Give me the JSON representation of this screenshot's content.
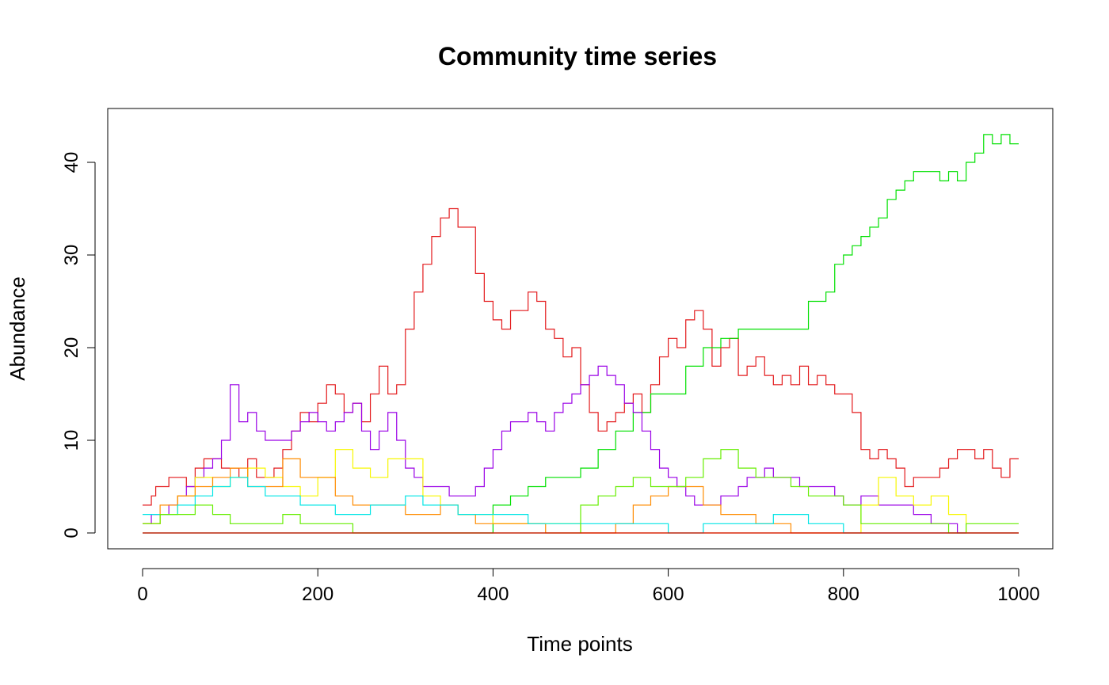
{
  "chart_data": {
    "type": "line",
    "title": "Community time series",
    "xlabel": "Time points",
    "ylabel": "Abundance",
    "xlim": [
      0,
      1000
    ],
    "ylim": [
      0,
      45
    ],
    "xticks": [
      0,
      200,
      400,
      600,
      800,
      1000
    ],
    "yticks": [
      0,
      10,
      20,
      30,
      40
    ],
    "grid": false,
    "series": [
      {
        "color": "#e31a1c",
        "x": [
          0,
          5,
          10,
          15,
          20,
          30,
          40,
          50,
          60,
          70,
          80,
          90,
          100,
          110,
          120,
          130,
          140,
          150,
          160,
          170,
          180,
          190,
          200,
          210,
          220,
          230,
          240,
          250,
          260,
          270,
          280,
          290,
          300,
          310,
          320,
          330,
          340,
          350,
          360,
          370,
          380,
          390,
          400,
          410,
          420,
          430,
          440,
          450,
          460,
          470,
          480,
          490,
          500,
          510,
          520,
          530,
          540,
          550,
          560,
          570,
          580,
          590,
          600,
          610,
          620,
          630,
          640,
          650,
          660,
          670,
          680,
          690,
          700,
          710,
          720,
          730,
          740,
          750,
          760,
          770,
          780,
          790,
          800,
          810,
          820,
          830,
          840,
          850,
          860,
          870,
          880,
          890,
          900,
          910,
          920,
          930,
          940,
          950,
          960,
          970,
          980,
          990,
          1000
        ],
        "y": [
          3,
          3,
          4,
          5,
          5,
          6,
          6,
          5,
          7,
          8,
          8,
          7,
          7,
          6,
          8,
          6,
          6,
          7,
          9,
          11,
          13,
          12,
          14,
          16,
          15,
          13,
          14,
          12,
          15,
          18,
          15,
          16,
          22,
          26,
          29,
          32,
          34,
          35,
          33,
          33,
          28,
          25,
          23,
          22,
          24,
          24,
          26,
          25,
          22,
          21,
          19,
          20,
          16,
          13,
          11,
          12,
          13,
          14,
          15,
          13,
          16,
          19,
          21,
          20,
          23,
          24,
          22,
          18,
          20,
          21,
          17,
          18,
          19,
          17,
          16,
          17,
          16,
          18,
          16,
          17,
          16,
          15,
          15,
          13,
          9,
          8,
          9,
          8,
          7,
          5,
          6,
          6,
          6,
          7,
          8,
          9,
          9,
          8,
          9,
          7,
          6,
          8,
          8
        ]
      },
      {
        "color": "#00e000",
        "x": [
          0,
          50,
          100,
          150,
          200,
          250,
          300,
          350,
          400,
          420,
          440,
          460,
          480,
          500,
          520,
          540,
          560,
          580,
          600,
          620,
          640,
          660,
          680,
          700,
          720,
          740,
          760,
          780,
          790,
          800,
          810,
          820,
          830,
          840,
          850,
          860,
          870,
          880,
          890,
          900,
          910,
          920,
          930,
          940,
          950,
          960,
          970,
          980,
          990,
          1000
        ],
        "y": [
          0,
          0,
          0,
          0,
          0,
          0,
          0,
          0,
          3,
          4,
          5,
          6,
          6,
          7,
          9,
          11,
          13,
          15,
          15,
          18,
          20,
          21,
          22,
          22,
          22,
          22,
          25,
          26,
          29,
          30,
          31,
          32,
          33,
          34,
          36,
          37,
          38,
          39,
          39,
          39,
          38,
          39,
          38,
          40,
          41,
          43,
          42,
          43,
          42,
          42
        ]
      },
      {
        "color": "#9a00e6",
        "x": [
          0,
          10,
          20,
          30,
          40,
          50,
          60,
          70,
          80,
          90,
          100,
          110,
          120,
          130,
          140,
          150,
          160,
          170,
          180,
          190,
          200,
          210,
          220,
          230,
          240,
          250,
          260,
          270,
          280,
          290,
          300,
          310,
          320,
          330,
          340,
          350,
          360,
          370,
          380,
          390,
          400,
          410,
          420,
          430,
          440,
          450,
          460,
          470,
          480,
          490,
          500,
          510,
          520,
          530,
          540,
          550,
          560,
          570,
          580,
          590,
          600,
          610,
          620,
          630,
          640,
          650,
          660,
          670,
          680,
          690,
          700,
          710,
          720,
          730,
          740,
          750,
          760,
          770,
          780,
          790,
          800,
          810,
          820,
          830,
          840,
          850,
          860,
          870,
          880,
          890,
          900,
          910,
          920,
          930,
          940
        ],
        "y": [
          1,
          2,
          2,
          3,
          4,
          5,
          6,
          7,
          8,
          10,
          16,
          12,
          13,
          11,
          10,
          10,
          10,
          11,
          12,
          13,
          12,
          11,
          12,
          13,
          14,
          11,
          9,
          11,
          13,
          10,
          7,
          6,
          5,
          5,
          5,
          4,
          4,
          4,
          5,
          7,
          9,
          11,
          12,
          12,
          13,
          12,
          11,
          13,
          14,
          15,
          16,
          17,
          18,
          17,
          16,
          14,
          13,
          11,
          9,
          7,
          6,
          5,
          4,
          3,
          3,
          3,
          4,
          4,
          5,
          6,
          6,
          7,
          6,
          6,
          6,
          5,
          5,
          5,
          5,
          4,
          3,
          3,
          4,
          4,
          3,
          3,
          3,
          3,
          2,
          2,
          1,
          1,
          1,
          0,
          0
        ]
      },
      {
        "color": "#f7f700",
        "x": [
          0,
          20,
          40,
          60,
          80,
          100,
          120,
          140,
          160,
          180,
          200,
          220,
          240,
          260,
          280,
          300,
          320,
          340,
          360,
          380,
          400,
          420,
          440,
          460,
          480,
          500,
          520,
          540,
          560,
          580,
          600,
          620,
          640,
          660,
          680,
          700,
          720,
          740,
          760,
          780,
          800,
          820,
          840,
          860,
          880,
          900,
          920,
          940,
          960,
          980,
          1000
        ],
        "y": [
          1,
          2,
          4,
          6,
          5,
          6,
          7,
          6,
          5,
          4,
          6,
          9,
          7,
          6,
          8,
          8,
          4,
          3,
          2,
          2,
          1,
          1,
          1,
          1,
          1,
          0,
          0,
          0,
          0,
          0,
          0,
          0,
          0,
          0,
          0,
          0,
          0,
          0,
          0,
          0,
          0,
          3,
          6,
          4,
          3,
          4,
          2,
          0,
          0,
          0,
          0
        ]
      },
      {
        "color": "#ff8c00",
        "x": [
          0,
          20,
          40,
          60,
          80,
          100,
          120,
          140,
          160,
          180,
          200,
          220,
          240,
          260,
          280,
          300,
          320,
          340,
          360,
          380,
          400,
          420,
          440,
          460,
          480,
          500,
          520,
          540,
          560,
          580,
          600,
          620,
          640,
          660,
          680,
          700,
          720,
          740,
          760,
          780,
          800,
          820,
          840,
          860,
          880,
          900,
          920,
          940,
          960,
          980,
          1000
        ],
        "y": [
          1,
          3,
          4,
          5,
          6,
          7,
          5,
          5,
          8,
          6,
          6,
          4,
          3,
          3,
          3,
          2,
          2,
          3,
          2,
          1,
          1,
          1,
          1,
          0,
          0,
          0,
          0,
          1,
          3,
          4,
          5,
          5,
          3,
          2,
          2,
          1,
          1,
          0,
          0,
          0,
          0,
          0,
          0,
          0,
          0,
          0,
          0,
          0,
          0,
          0,
          0
        ]
      },
      {
        "color": "#00e5e5",
        "x": [
          0,
          20,
          40,
          60,
          80,
          100,
          120,
          140,
          160,
          180,
          200,
          220,
          240,
          260,
          280,
          300,
          320,
          340,
          360,
          380,
          400,
          420,
          440,
          460,
          480,
          500,
          520,
          540,
          560,
          580,
          600,
          620,
          640,
          660,
          680,
          700,
          720,
          740,
          760,
          780,
          800,
          820,
          840,
          860,
          880,
          900,
          920,
          940,
          960,
          980,
          1000
        ],
        "y": [
          2,
          2,
          3,
          4,
          5,
          6,
          5,
          4,
          4,
          3,
          3,
          2,
          2,
          3,
          3,
          4,
          3,
          3,
          2,
          2,
          2,
          2,
          1,
          1,
          1,
          1,
          1,
          1,
          1,
          1,
          0,
          0,
          1,
          1,
          1,
          1,
          2,
          2,
          1,
          1,
          0,
          0,
          0,
          0,
          0,
          0,
          0,
          0,
          0,
          0,
          0
        ]
      },
      {
        "color": "#66ee00",
        "x": [
          0,
          20,
          40,
          60,
          80,
          100,
          120,
          140,
          160,
          180,
          200,
          220,
          240,
          260,
          280,
          300,
          320,
          340,
          360,
          380,
          400,
          420,
          440,
          460,
          480,
          500,
          520,
          540,
          560,
          580,
          600,
          620,
          640,
          660,
          680,
          700,
          720,
          740,
          760,
          780,
          800,
          820,
          840,
          860,
          880,
          900,
          920,
          940,
          960,
          980,
          1000
        ],
        "y": [
          1,
          2,
          2,
          3,
          2,
          1,
          1,
          1,
          2,
          1,
          1,
          1,
          0,
          0,
          0,
          0,
          0,
          0,
          0,
          0,
          0,
          0,
          0,
          0,
          0,
          3,
          4,
          5,
          6,
          5,
          5,
          6,
          8,
          9,
          7,
          6,
          6,
          5,
          4,
          4,
          3,
          1,
          1,
          1,
          1,
          1,
          0,
          1,
          1,
          1,
          1
        ]
      },
      {
        "color": "#d10000",
        "x": [
          0,
          100,
          200,
          300,
          400,
          500,
          600,
          700,
          800,
          900,
          1000
        ],
        "y": [
          0,
          0,
          0,
          0,
          0,
          0,
          0,
          0,
          0,
          0,
          0
        ]
      }
    ]
  }
}
